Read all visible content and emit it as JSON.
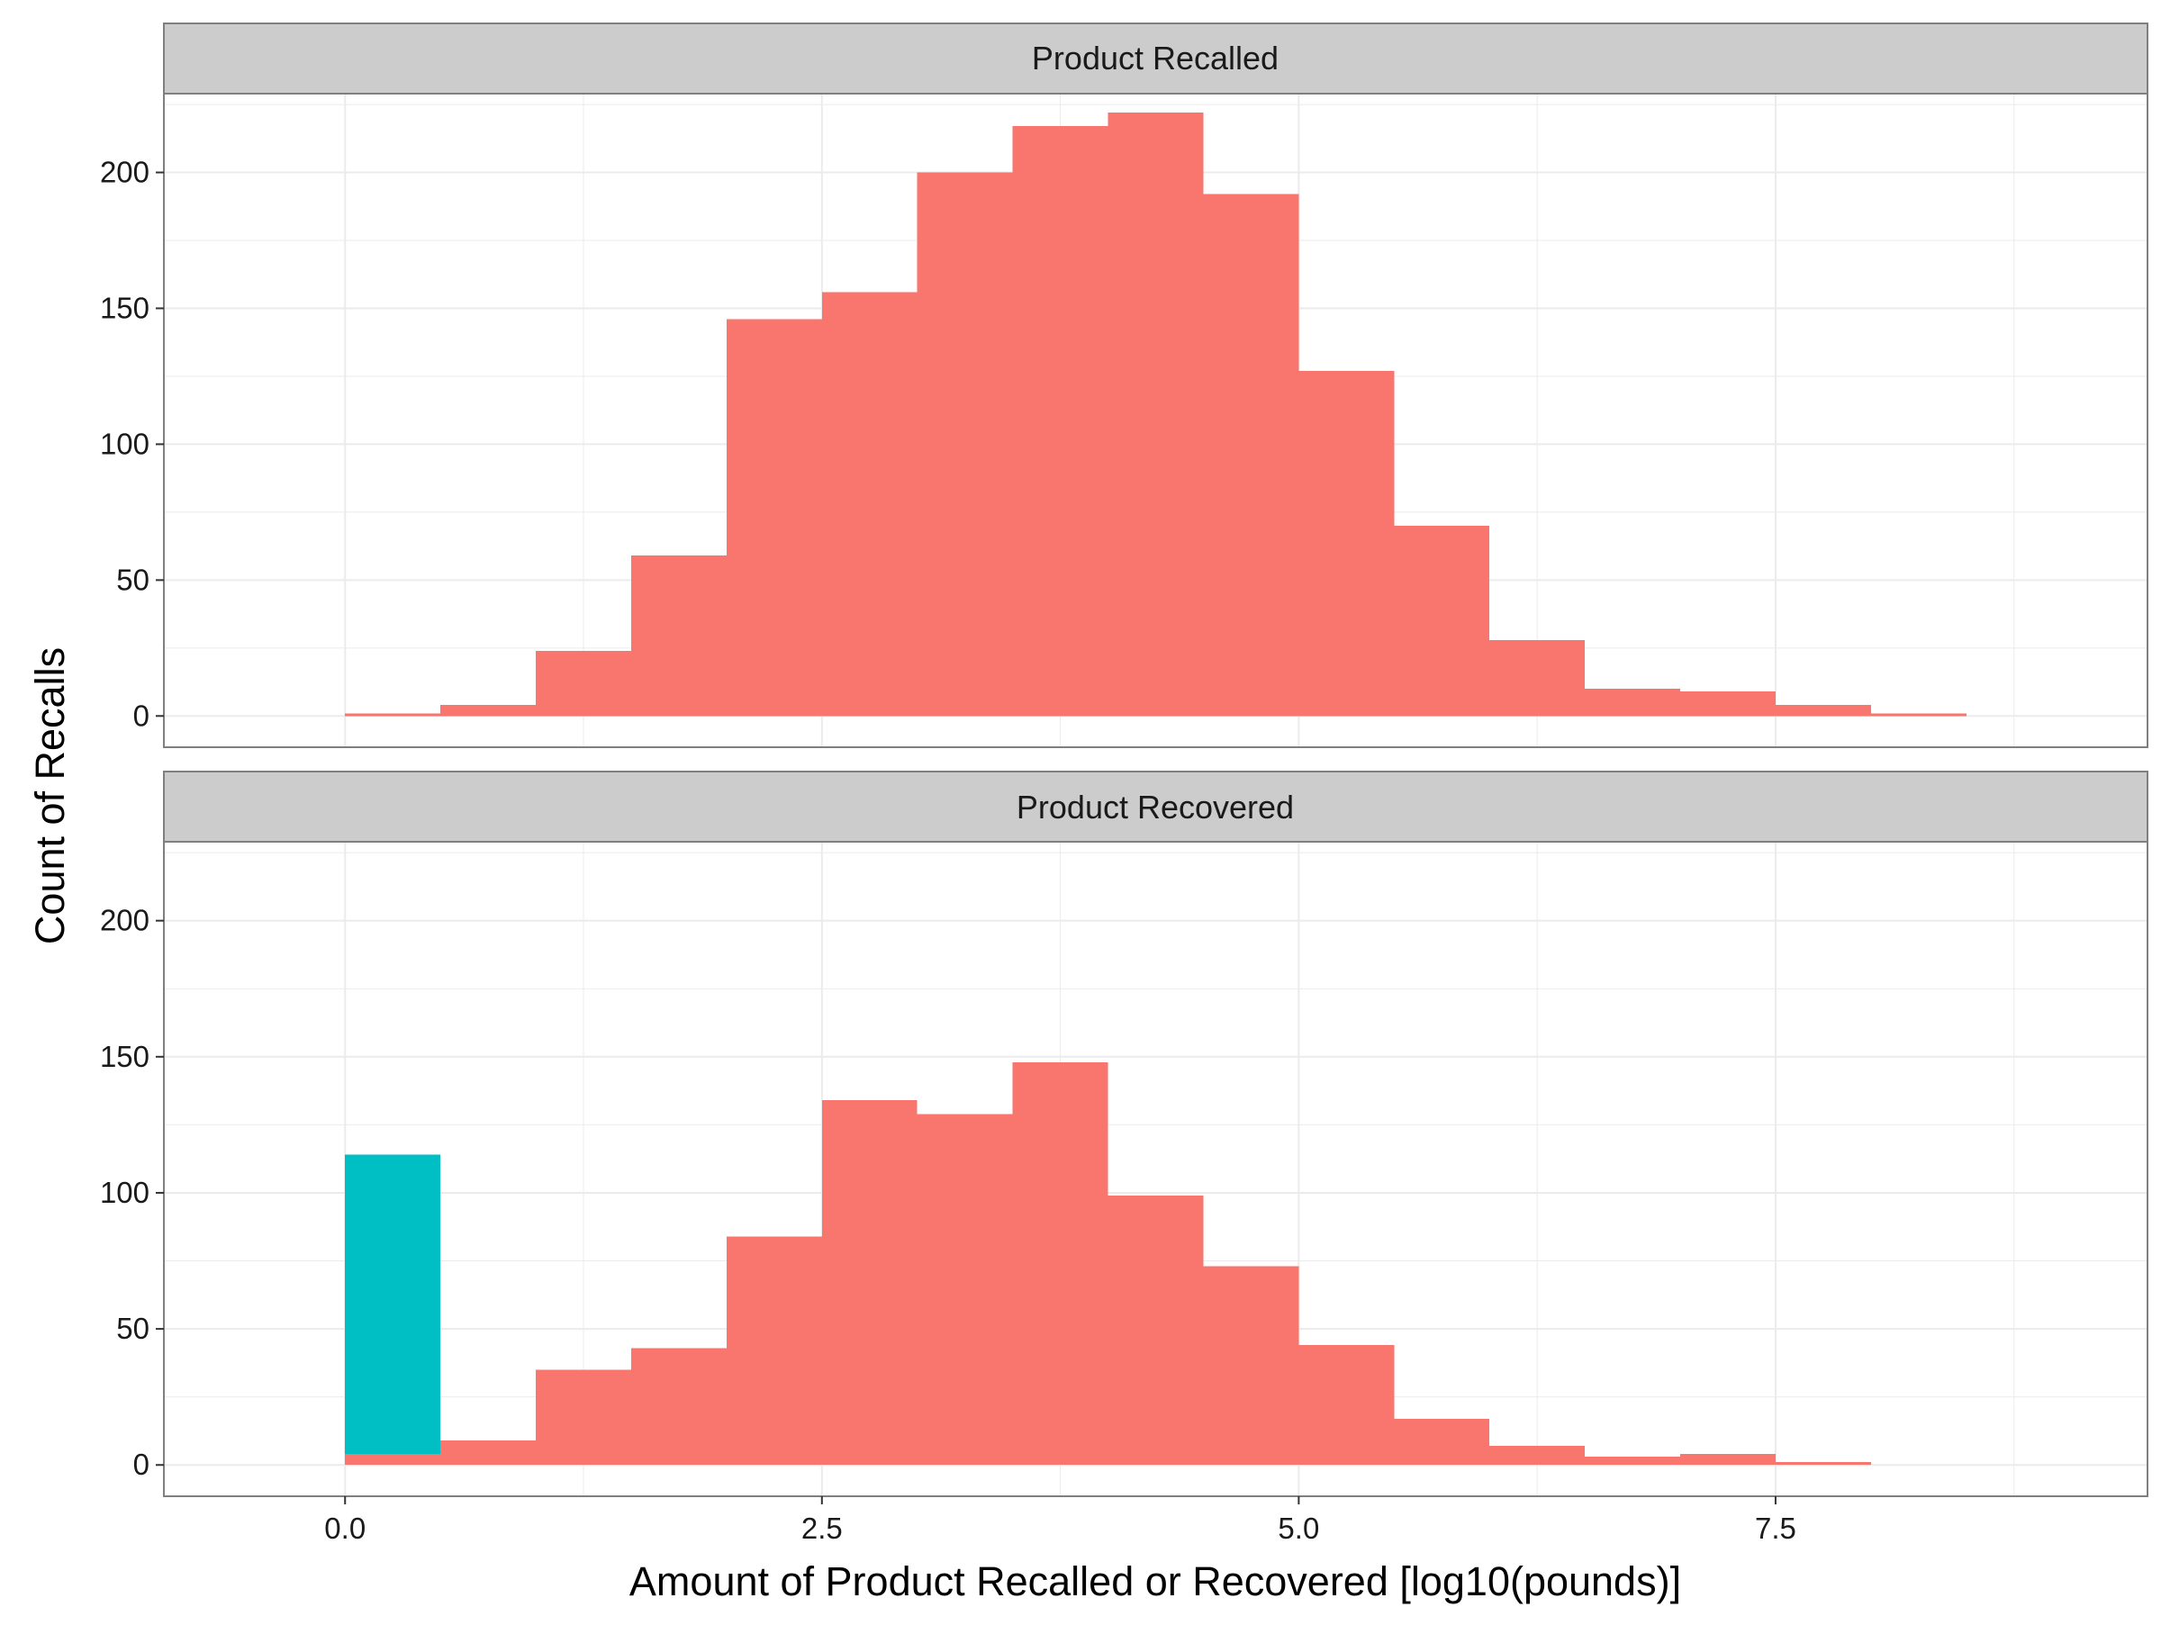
{
  "chart_data": {
    "type": "bar",
    "subtype": "faceted-histogram",
    "xlabel": "Amount of Product Recalled or Recovered [log10(pounds)]",
    "ylabel": "Count of Recalls",
    "xlim": [
      -0.95,
      9.45
    ],
    "ylim": [
      -11.5,
      229
    ],
    "x_ticks": [
      {
        "value": 0,
        "label": "0.0"
      },
      {
        "value": 2.5,
        "label": "2.5"
      },
      {
        "value": 5,
        "label": "5.0"
      },
      {
        "value": 7.5,
        "label": "7.5"
      }
    ],
    "y_ticks": [
      {
        "value": 0,
        "label": "0"
      },
      {
        "value": 50,
        "label": "50"
      },
      {
        "value": 100,
        "label": "100"
      },
      {
        "value": 150,
        "label": "150"
      },
      {
        "value": 200,
        "label": "200"
      }
    ],
    "bin_width": 0.5,
    "grid": true,
    "legend": "none",
    "colors": {
      "salmon": "#F8766D",
      "teal": "#00BFC4",
      "strip": "#CCCCCC",
      "grid": "#EBEBEB",
      "border": "#7F7F7F"
    },
    "panels": [
      {
        "strip_label": "Product Recalled",
        "series": [
          {
            "color": "salmon",
            "bins": [
              {
                "x0": 0.0,
                "x1": 0.5,
                "count": 1
              },
              {
                "x0": 0.5,
                "x1": 1.0,
                "count": 4
              },
              {
                "x0": 1.0,
                "x1": 1.5,
                "count": 24
              },
              {
                "x0": 1.5,
                "x1": 2.0,
                "count": 59
              },
              {
                "x0": 2.0,
                "x1": 2.5,
                "count": 146
              },
              {
                "x0": 2.5,
                "x1": 3.0,
                "count": 156
              },
              {
                "x0": 3.0,
                "x1": 3.5,
                "count": 200
              },
              {
                "x0": 3.5,
                "x1": 4.0,
                "count": 217
              },
              {
                "x0": 4.0,
                "x1": 4.5,
                "count": 222
              },
              {
                "x0": 4.5,
                "x1": 5.0,
                "count": 192
              },
              {
                "x0": 5.0,
                "x1": 5.5,
                "count": 127
              },
              {
                "x0": 5.5,
                "x1": 6.0,
                "count": 70
              },
              {
                "x0": 6.0,
                "x1": 6.5,
                "count": 28
              },
              {
                "x0": 6.5,
                "x1": 7.0,
                "count": 10
              },
              {
                "x0": 7.0,
                "x1": 7.5,
                "count": 9
              },
              {
                "x0": 7.5,
                "x1": 8.0,
                "count": 4
              },
              {
                "x0": 8.0,
                "x1": 8.5,
                "count": 1
              }
            ]
          }
        ]
      },
      {
        "strip_label": "Product Recovered",
        "series": [
          {
            "color": "salmon",
            "bins": [
              {
                "x0": 0.0,
                "x1": 0.5,
                "count": 4
              },
              {
                "x0": 0.5,
                "x1": 1.0,
                "count": 9
              },
              {
                "x0": 1.0,
                "x1": 1.5,
                "count": 35
              },
              {
                "x0": 1.5,
                "x1": 2.0,
                "count": 43
              },
              {
                "x0": 2.0,
                "x1": 2.5,
                "count": 84
              },
              {
                "x0": 2.5,
                "x1": 3.0,
                "count": 134
              },
              {
                "x0": 3.0,
                "x1": 3.5,
                "count": 129
              },
              {
                "x0": 3.5,
                "x1": 4.0,
                "count": 148
              },
              {
                "x0": 4.0,
                "x1": 4.5,
                "count": 99
              },
              {
                "x0": 4.5,
                "x1": 5.0,
                "count": 73
              },
              {
                "x0": 5.0,
                "x1": 5.5,
                "count": 44
              },
              {
                "x0": 5.5,
                "x1": 6.0,
                "count": 17
              },
              {
                "x0": 6.0,
                "x1": 6.5,
                "count": 7
              },
              {
                "x0": 6.5,
                "x1": 7.0,
                "count": 3
              },
              {
                "x0": 7.0,
                "x1": 7.5,
                "count": 4
              },
              {
                "x0": 7.5,
                "x1": 8.0,
                "count": 1
              }
            ]
          },
          {
            "color": "teal",
            "stacked_on": "salmon",
            "bins": [
              {
                "x0": 0.0,
                "x1": 0.5,
                "count": 110
              }
            ]
          }
        ]
      }
    ]
  }
}
